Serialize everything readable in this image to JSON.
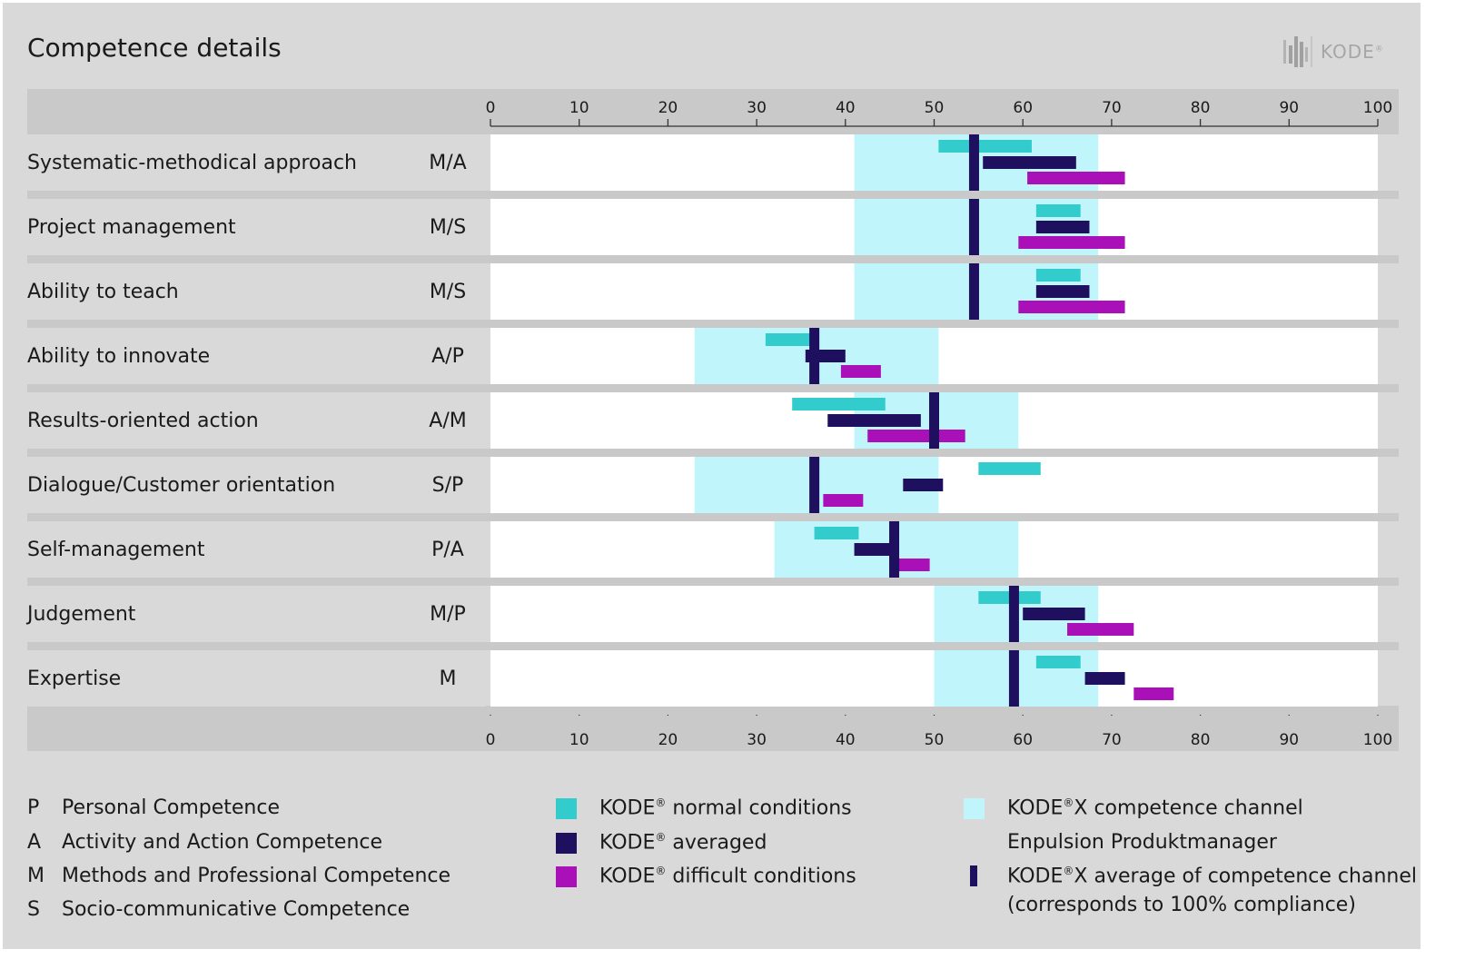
{
  "header": {
    "title": "Competence details",
    "logo_text": "KODE",
    "logo_mark": "®"
  },
  "colors": {
    "normal": "#33cccc",
    "averaged": "#1f0f5f",
    "difficult": "#aa10b8",
    "channel": "#c0f5fb",
    "channel_average": "#1f0f5f"
  },
  "chart_data": {
    "type": "bar",
    "xlim": [
      0,
      100
    ],
    "ticks": [
      0,
      10,
      20,
      30,
      40,
      50,
      60,
      70,
      80,
      90,
      100
    ],
    "rows": [
      {
        "label": "Systematic-methodical approach",
        "code": "M/A",
        "channel": [
          41,
          68.5
        ],
        "channel_avg": 54.5,
        "normal": [
          50.5,
          61
        ],
        "averaged": [
          55.5,
          66
        ],
        "difficult": [
          60.5,
          71.5
        ]
      },
      {
        "label": "Project management",
        "code": "M/S",
        "channel": [
          41,
          68.5
        ],
        "channel_avg": 54.5,
        "normal": [
          61.5,
          66.5
        ],
        "averaged": [
          61.5,
          67.5
        ],
        "difficult": [
          59.5,
          71.5
        ]
      },
      {
        "label": "Ability to teach",
        "code": "M/S",
        "channel": [
          41,
          68.5
        ],
        "channel_avg": 54.5,
        "normal": [
          61.5,
          66.5
        ],
        "averaged": [
          61.5,
          67.5
        ],
        "difficult": [
          59.5,
          71.5
        ]
      },
      {
        "label": "Ability to innovate",
        "code": "A/P",
        "channel": [
          23,
          50.5
        ],
        "channel_avg": 36.5,
        "normal": [
          31,
          36
        ],
        "averaged": [
          35.5,
          40
        ],
        "difficult": [
          39.5,
          44
        ]
      },
      {
        "label": "Results-oriented action",
        "code": "A/M",
        "channel": [
          41,
          59.5
        ],
        "channel_avg": 50,
        "normal": [
          34,
          44.5
        ],
        "averaged": [
          38,
          48.5
        ],
        "difficult": [
          42.5,
          53.5
        ]
      },
      {
        "label": "Dialogue/Customer orientation",
        "code": "S/P",
        "channel": [
          23,
          50.5
        ],
        "channel_avg": 36.5,
        "normal": [
          55,
          62
        ],
        "averaged": [
          46.5,
          51
        ],
        "difficult": [
          37.5,
          42
        ]
      },
      {
        "label": "Self-management",
        "code": "P/A",
        "channel": [
          32,
          59.5
        ],
        "channel_avg": 45.5,
        "normal": [
          36.5,
          41.5
        ],
        "averaged": [
          41,
          46
        ],
        "difficult": [
          45,
          49.5
        ]
      },
      {
        "label": "Judgement",
        "code": "M/P",
        "channel": [
          50,
          68.5
        ],
        "channel_avg": 59,
        "normal": [
          55,
          62
        ],
        "averaged": [
          60,
          67
        ],
        "difficult": [
          65,
          72.5
        ]
      },
      {
        "label": "Expertise",
        "code": "M",
        "channel": [
          50,
          68.5
        ],
        "channel_avg": 59,
        "normal": [
          61.5,
          66.5
        ],
        "averaged": [
          67,
          71.5
        ],
        "difficult": [
          72.5,
          77
        ]
      }
    ]
  },
  "legend": {
    "codes": [
      {
        "letter": "P",
        "text": "Personal Competence"
      },
      {
        "letter": "A",
        "text": "Activity and Action Competence"
      },
      {
        "letter": "M",
        "text": "Methods and Professional Competence"
      },
      {
        "letter": "S",
        "text": "Socio-communicative Competence"
      }
    ],
    "series": [
      {
        "key": "normal",
        "prefix": "KODE",
        "mark": "®",
        "suffix": " normal conditions"
      },
      {
        "key": "averaged",
        "prefix": "KODE",
        "mark": "®",
        "suffix": " averaged"
      },
      {
        "key": "difficult",
        "prefix": "KODE",
        "mark": "®",
        "suffix": " difficult conditions"
      }
    ],
    "channel": {
      "prefix": "KODE",
      "mark": "®",
      "suffix": "X competence channel",
      "line2": "Enpulsion Produktmanager"
    },
    "channel_average": {
      "prefix": "KODE",
      "mark": "®",
      "suffix": "X average of competence channel",
      "line2": "(corresponds to 100% compliance)"
    }
  }
}
